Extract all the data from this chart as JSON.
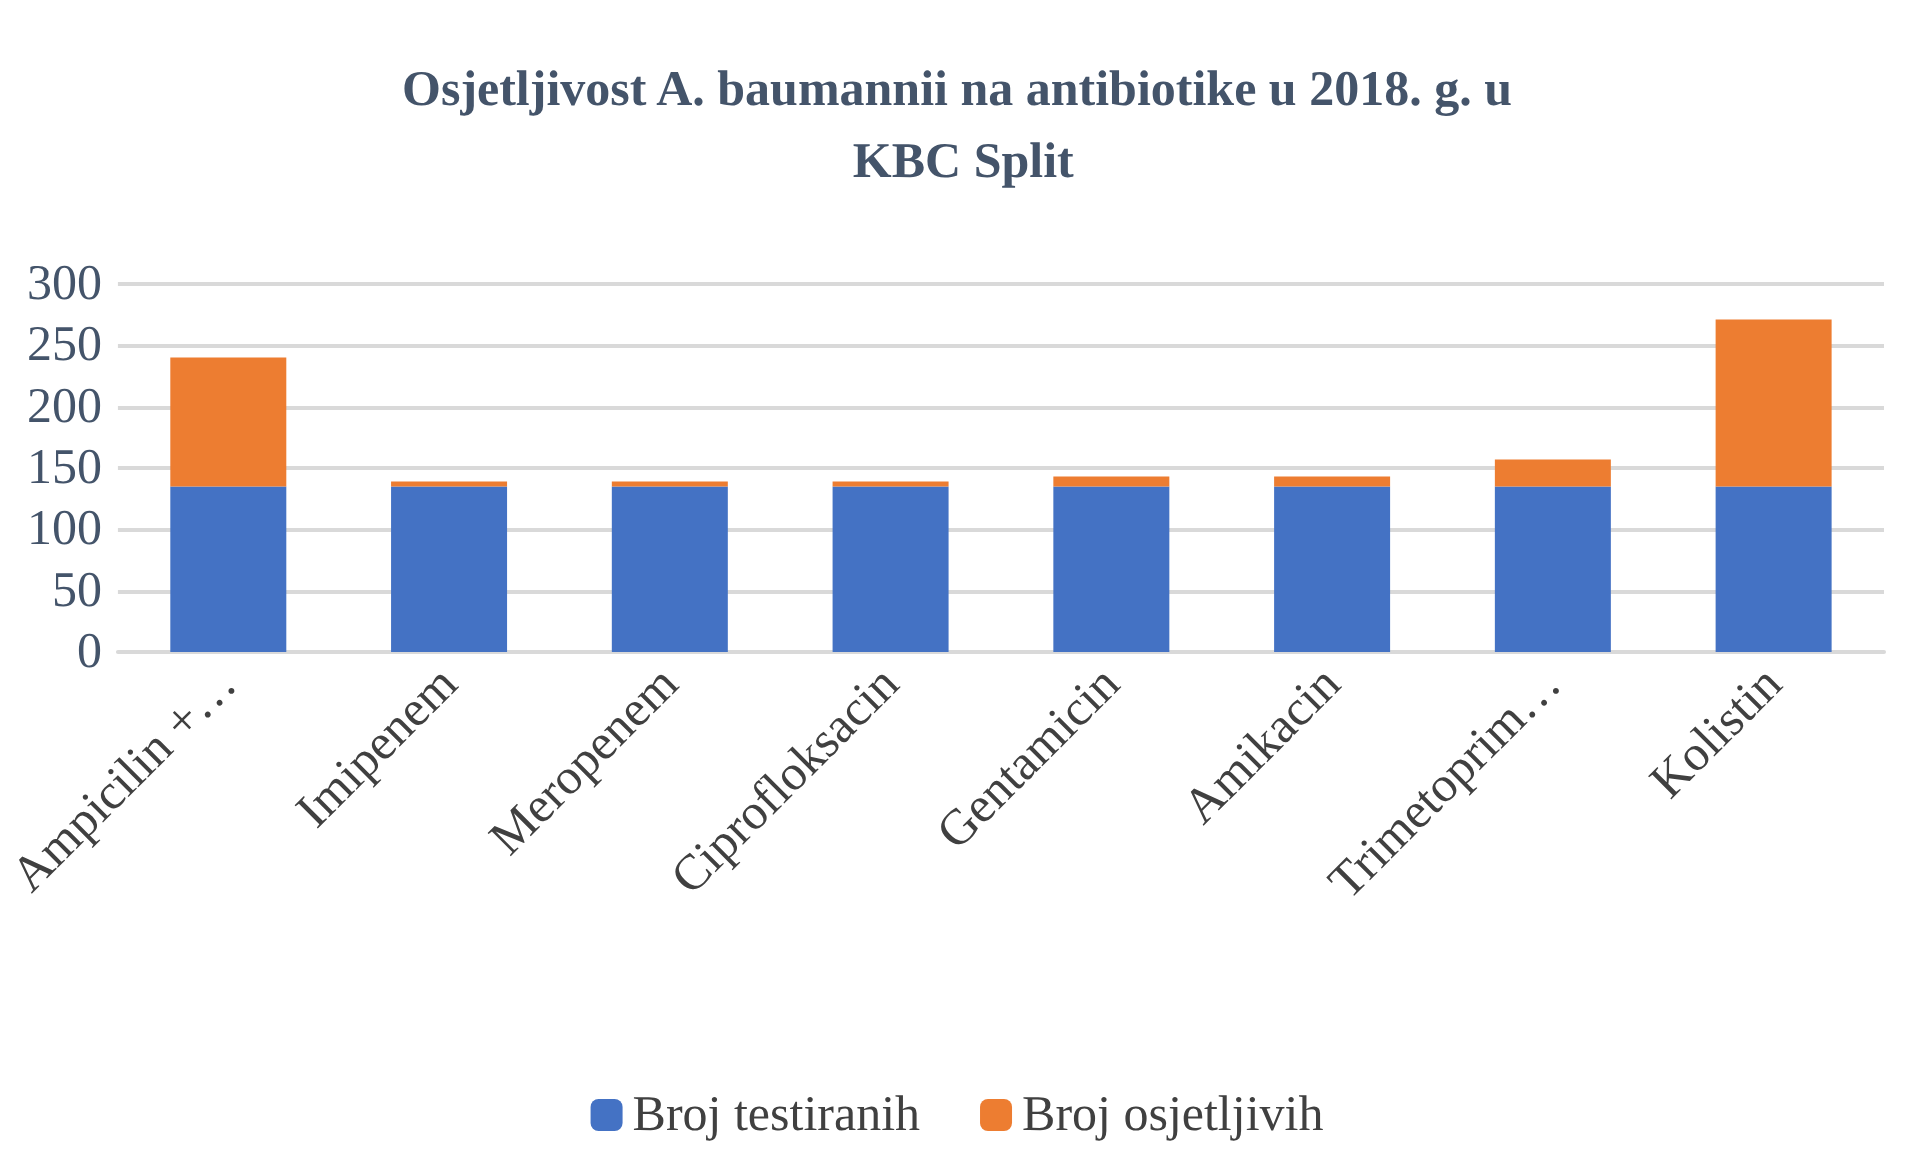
{
  "chart_data": {
    "type": "bar",
    "title": "Osjetljivost A. baumannii na antibiotike u 2018. g. u KBC Split",
    "categories": [
      "Ampicilin +…",
      "Imipenem",
      "Meropenem",
      "Ciprofloksacin",
      "Gentamicin",
      "Amikacin",
      "Trimetoprim…",
      "Kolistin"
    ],
    "series": [
      {
        "name": "Broj testiranih",
        "color": "#4472c4",
        "values": [
          135,
          135,
          135,
          135,
          135,
          135,
          135,
          135
        ]
      },
      {
        "name": "Broj osjetljivih",
        "color": "#ed7d31",
        "values": [
          105,
          4,
          4,
          4,
          8,
          8,
          22,
          136
        ]
      }
    ],
    "stacked": true,
    "ylim": [
      0,
      300
    ],
    "yticks": [
      0,
      50,
      100,
      150,
      200,
      250,
      300
    ],
    "grid": "y",
    "legend": "bottom"
  }
}
